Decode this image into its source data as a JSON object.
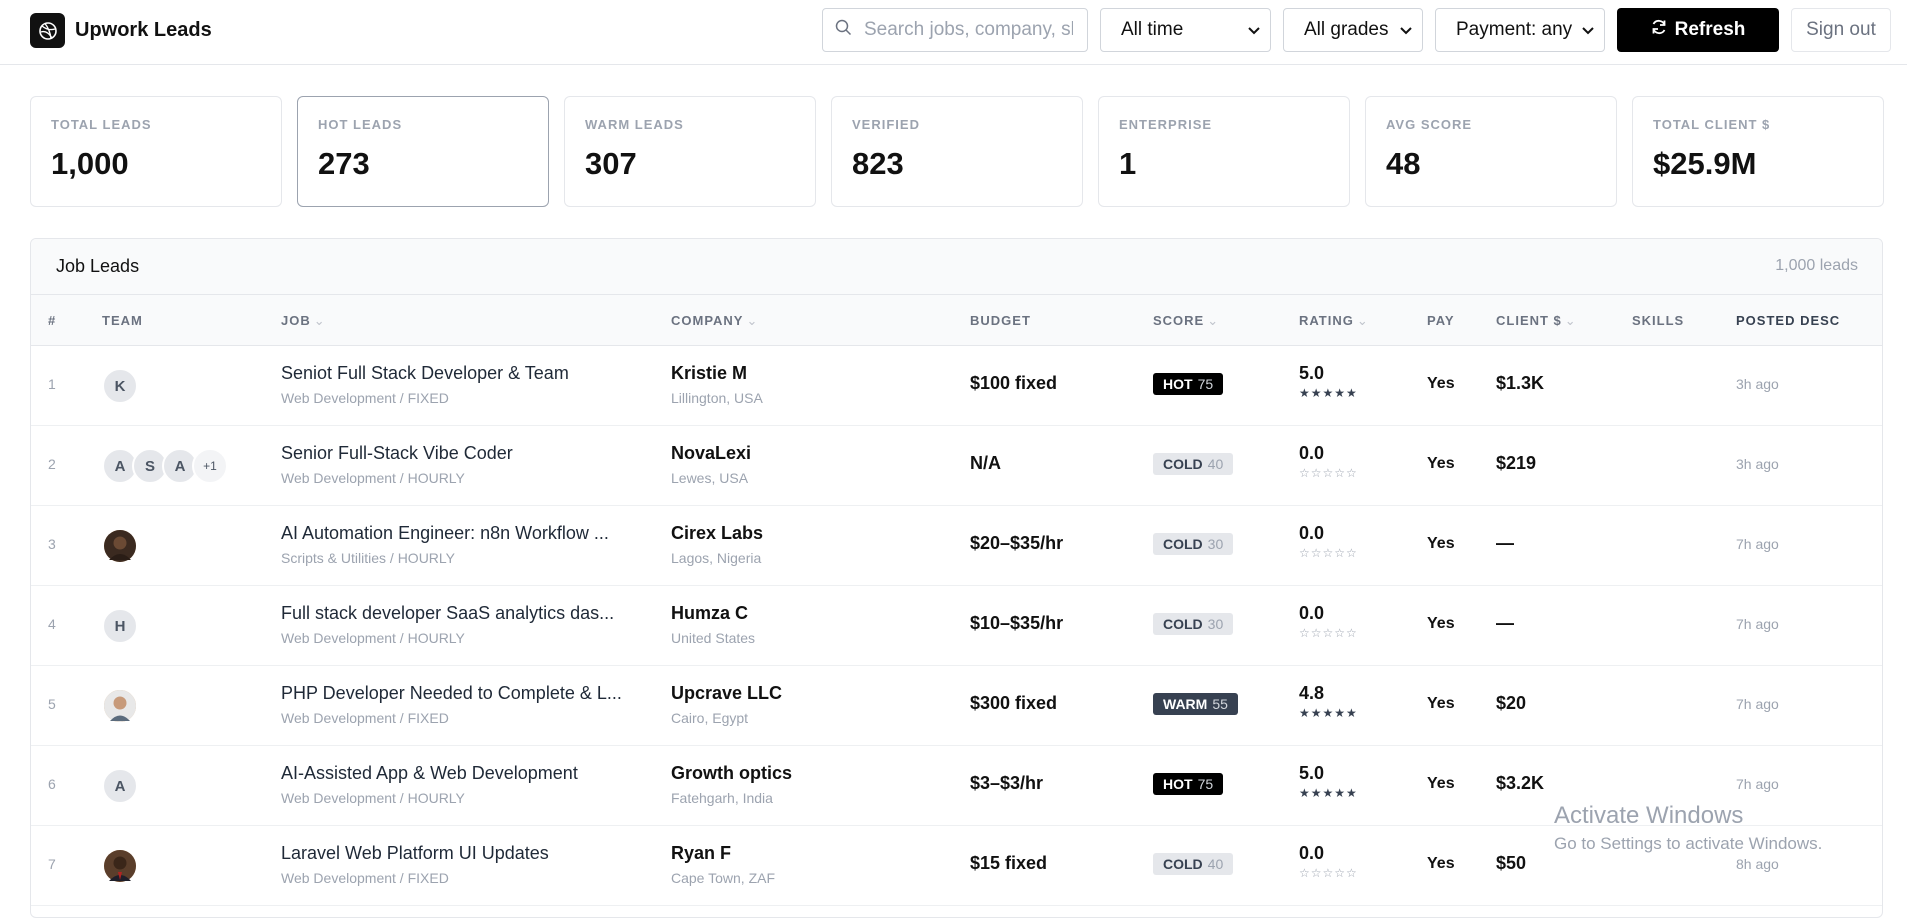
{
  "app": {
    "title": "Upwork Leads",
    "logo_icon": "dribbble-icon"
  },
  "toolbar": {
    "search_placeholder": "Search jobs, company, skills...",
    "time_filter": "All time",
    "grade_filter": "All grades",
    "payment_filter": "Payment: any",
    "refresh_label": "Refresh",
    "signout_label": "Sign out"
  },
  "stats": [
    {
      "label": "TOTAL LEADS",
      "value": "1,000"
    },
    {
      "label": "HOT LEADS",
      "value": "273"
    },
    {
      "label": "WARM LEADS",
      "value": "307"
    },
    {
      "label": "VERIFIED",
      "value": "823"
    },
    {
      "label": "ENTERPRISE",
      "value": "1"
    },
    {
      "label": "AVG SCORE",
      "value": "48"
    },
    {
      "label": "TOTAL CLIENT $",
      "value": "$25.9M"
    }
  ],
  "table": {
    "title": "Job Leads",
    "count": "1,000 leads",
    "columns": {
      "num": "#",
      "team": "TEAM",
      "job": "JOB",
      "company": "COMPANY",
      "budget": "BUDGET",
      "score": "SCORE",
      "rating": "RATING",
      "pay": "PAY",
      "client": "CLIENT $",
      "skills": "SKILLS",
      "posted": "POSTED DESC"
    },
    "rows": [
      {
        "num": "1",
        "team": [
          "K"
        ],
        "job": "Seniot Full Stack Developer & Team",
        "category": "Web Development / FIXED",
        "company": "Kristie M",
        "location": "Lillington, USA",
        "budget": "$100 fixed",
        "grade": "HOT",
        "score": "75",
        "rating": "5.0",
        "stars": "★★★★★",
        "pay": "Yes",
        "client": "$1.3K",
        "posted": "3h ago"
      },
      {
        "num": "2",
        "team": [
          "A",
          "S",
          "A",
          "+1"
        ],
        "job": "Senior Full-Stack Vibe Coder",
        "category": "Web Development / HOURLY",
        "company": "NovaLexi",
        "location": "Lewes, USA",
        "budget": "N/A",
        "grade": "COLD",
        "score": "40",
        "rating": "0.0",
        "stars": "☆☆☆☆☆",
        "pay": "Yes",
        "client": "$219",
        "posted": "3h ago"
      },
      {
        "num": "3",
        "team": [
          "photo"
        ],
        "job": "AI Automation Engineer: n8n Workflow ...",
        "category": "Scripts & Utilities / HOURLY",
        "company": "Cirex Labs",
        "location": "Lagos, Nigeria",
        "budget": "$20–$35/hr",
        "grade": "COLD",
        "score": "30",
        "rating": "0.0",
        "stars": "☆☆☆☆☆",
        "pay": "Yes",
        "client": "—",
        "posted": "7h ago"
      },
      {
        "num": "4",
        "team": [
          "H"
        ],
        "job": "Full stack developer SaaS analytics das...",
        "category": "Web Development / HOURLY",
        "company": "Humza C",
        "location": "United States",
        "budget": "$10–$35/hr",
        "grade": "COLD",
        "score": "30",
        "rating": "0.0",
        "stars": "☆☆☆☆☆",
        "pay": "Yes",
        "client": "—",
        "posted": "7h ago"
      },
      {
        "num": "5",
        "team": [
          "photo"
        ],
        "job": "PHP Developer Needed to Complete & L...",
        "category": "Web Development / FIXED",
        "company": "Upcrave LLC",
        "location": "Cairo, Egypt",
        "budget": "$300 fixed",
        "grade": "WARM",
        "score": "55",
        "rating": "4.8",
        "stars": "★★★★★",
        "pay": "Yes",
        "client": "$20",
        "posted": "7h ago"
      },
      {
        "num": "6",
        "team": [
          "A"
        ],
        "job": "AI-Assisted App & Web Development",
        "category": "Web Development / HOURLY",
        "company": "Growth optics",
        "location": "Fatehgarh, India",
        "budget": "$3–$3/hr",
        "grade": "HOT",
        "score": "75",
        "rating": "5.0",
        "stars": "★★★★★",
        "pay": "Yes",
        "client": "$3.2K",
        "posted": "7h ago"
      },
      {
        "num": "7",
        "team": [
          "photo"
        ],
        "job": "Laravel Web Platform UI Updates",
        "category": "Web Development / FIXED",
        "company": "Ryan F",
        "location": "Cape Town, ZAF",
        "budget": "$15 fixed",
        "grade": "COLD",
        "score": "40",
        "rating": "0.0",
        "stars": "☆☆☆☆☆",
        "pay": "Yes",
        "client": "$50",
        "posted": "8h ago"
      }
    ]
  },
  "watermark": {
    "title": "Activate Windows",
    "subtitle": "Go to Settings to activate Windows."
  }
}
